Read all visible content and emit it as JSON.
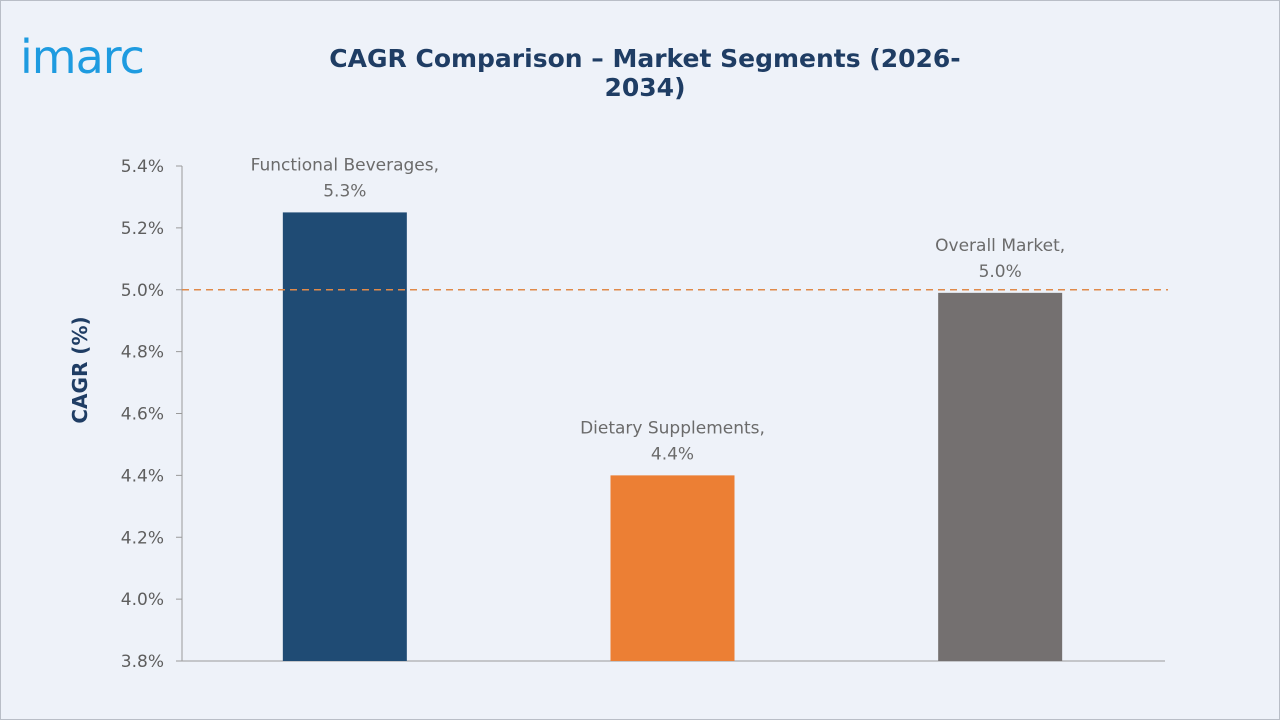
{
  "brand": {
    "logo_text": "imarc",
    "logo_color": "#1e9be0"
  },
  "chart_data": {
    "type": "bar",
    "title": "CAGR Comparison – Market Segments (2026-2034)",
    "xlabel": "",
    "ylabel": "CAGR (%)",
    "ylim": [
      3.8,
      5.4
    ],
    "yticks": [
      3.8,
      4.0,
      4.2,
      4.4,
      4.6,
      4.8,
      5.0,
      5.2,
      5.4
    ],
    "ytick_labels": [
      "3.8%",
      "4.0%",
      "4.2%",
      "4.4%",
      "4.6%",
      "4.8%",
      "5.0%",
      "5.2%",
      "5.4%"
    ],
    "categories": [
      "Functional Beverages",
      "Dietary Supplements",
      "Overall Market"
    ],
    "values": [
      5.25,
      4.4,
      4.99
    ],
    "data_labels": [
      [
        "Functional Beverages,",
        "5.3%"
      ],
      [
        "Dietary Supplements,",
        "4.4%"
      ],
      [
        "Overall Market,",
        "5.0%"
      ]
    ],
    "colors": [
      "#1f4b74",
      "#ec7f34",
      "#747070"
    ],
    "reference_line": {
      "value": 5.0,
      "style": "dashed",
      "color": "#e08a4a"
    },
    "grid": false,
    "legend": "none"
  }
}
